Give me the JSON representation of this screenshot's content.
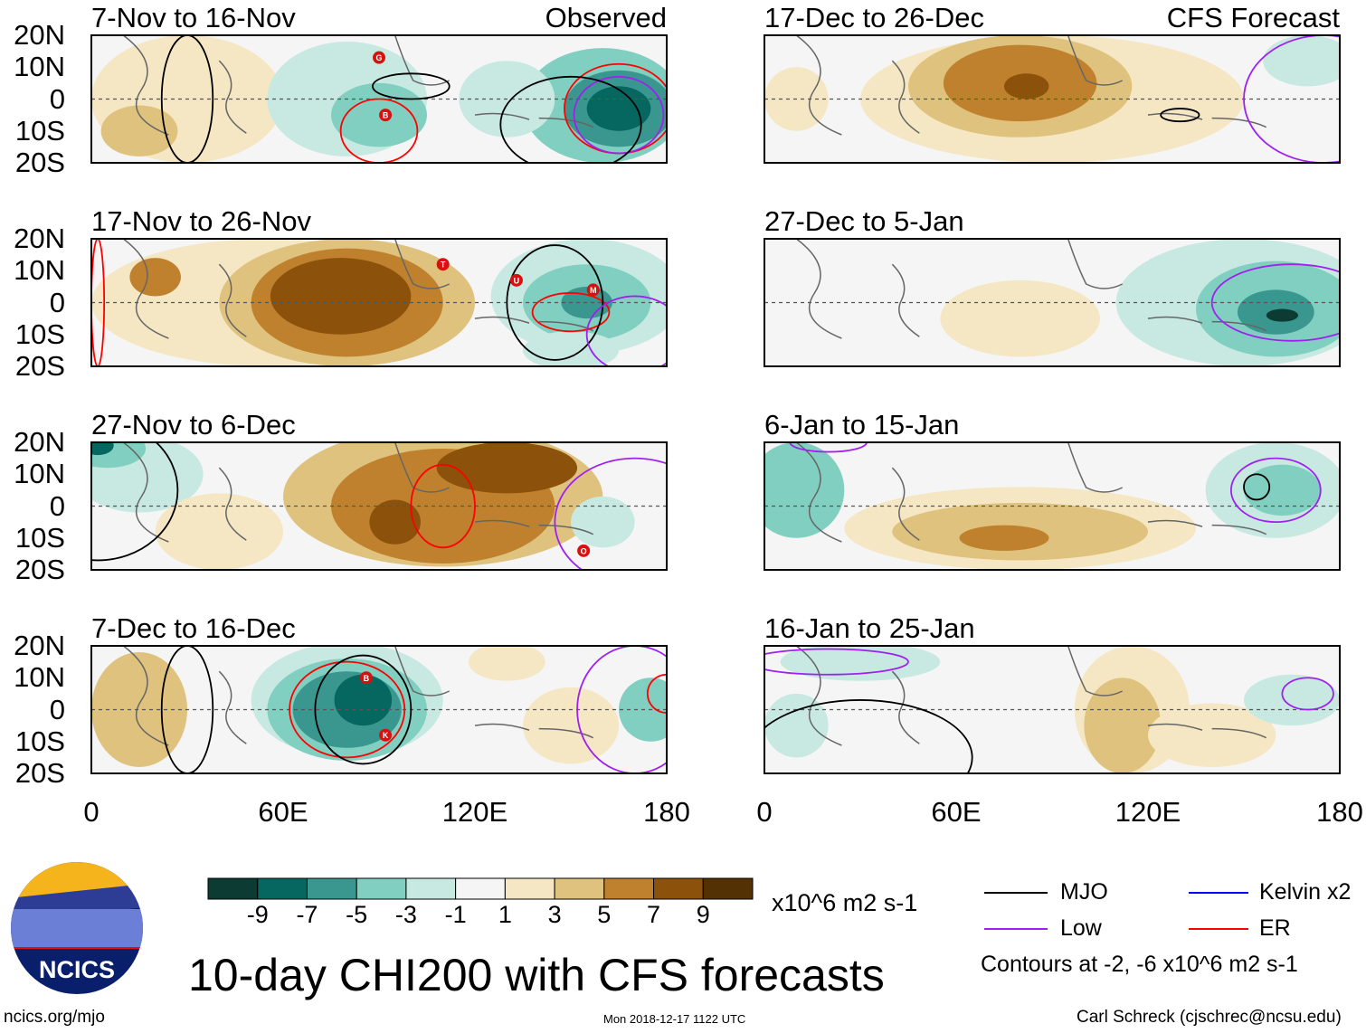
{
  "colors": [
    "#0b3b33",
    "#05675f",
    "#3a978f",
    "#80cfc0",
    "#c7e9e2",
    "#f5f5f5",
    "#f5e7c3",
    "#dfc27d",
    "#bf812d",
    "#8c510a",
    "#543005"
  ],
  "ylabels": [
    "20N",
    "10N",
    "0",
    "10S",
    "20S"
  ],
  "xlabels": [
    "0",
    "60E",
    "120E",
    "180"
  ],
  "panels": [
    {
      "title": "7-Nov to 16-Nov",
      "tag": "Observed",
      "storms": [
        "G",
        "B"
      ]
    },
    {
      "title": "17-Nov to 26-Nov",
      "storms": [
        "T",
        "U",
        "M"
      ]
    },
    {
      "title": "27-Nov to 6-Dec",
      "storms": [
        "O"
      ]
    },
    {
      "title": "7-Dec to 16-Dec",
      "storms": [
        "B",
        "K"
      ]
    },
    {
      "title": "17-Dec to 26-Dec",
      "tag": "CFS Forecast"
    },
    {
      "title": "27-Dec to 5-Jan"
    },
    {
      "title": "6-Jan to 15-Jan"
    },
    {
      "title": "16-Jan to 25-Jan"
    }
  ],
  "colorbar": {
    "labels": [
      "-9",
      "-7",
      "-5",
      "-3",
      "-1",
      "1",
      "3",
      "5",
      "7",
      "9"
    ],
    "units": "x10^6 m2 s-1"
  },
  "legend": {
    "items": [
      {
        "label": "MJO",
        "color": "#000000"
      },
      {
        "label": "Kelvin x2",
        "color": "#0000ff"
      },
      {
        "label": "Low",
        "color": "#a020f0"
      },
      {
        "label": "ER",
        "color": "#ff0000"
      }
    ],
    "note": "Contours at -2, -6 x10^6 m2 s-1"
  },
  "footer": {
    "title": "10-day CHI200 with CFS forecasts",
    "logo_text": "NCICS",
    "url": "ncics.org/mjo",
    "timestamp": "Mon 2018-12-17 1122 UTC",
    "credit": "Carl Schreck (cjschrec@ncsu.edu)"
  }
}
